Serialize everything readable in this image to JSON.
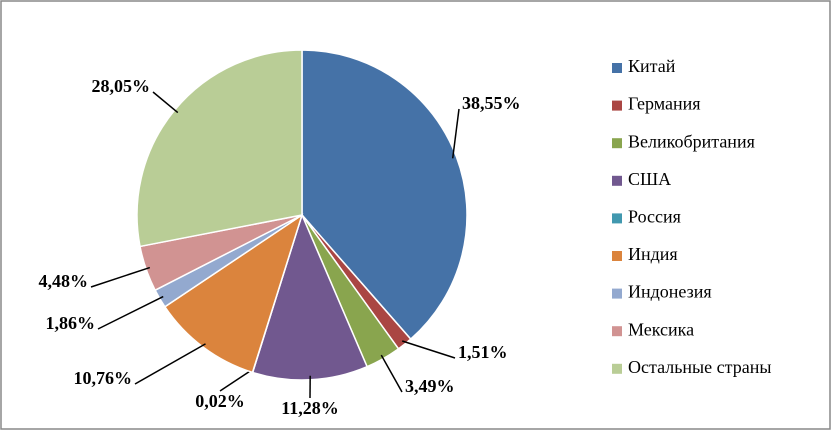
{
  "chart_data": {
    "type": "pie",
    "categories": [
      "Китай",
      "Германия",
      "Великобритания",
      "США",
      "Россия",
      "Индия",
      "Индонезия",
      "Мексика",
      "Остальные страны"
    ],
    "values": [
      38.55,
      1.51,
      3.49,
      11.28,
      0.02,
      10.76,
      1.86,
      4.48,
      28.05
    ],
    "value_labels": [
      "38,55%",
      "1,51%",
      "3,49%",
      "11,28%",
      "0,02%",
      "10,76%",
      "1,86%",
      "4,48%",
      "28,05%"
    ],
    "colors": [
      "#4572a7",
      "#aa4643",
      "#89a54e",
      "#71588f",
      "#4198af",
      "#db843d",
      "#93a9cf",
      "#d19392",
      "#b9cd96"
    ],
    "legend": "right"
  }
}
